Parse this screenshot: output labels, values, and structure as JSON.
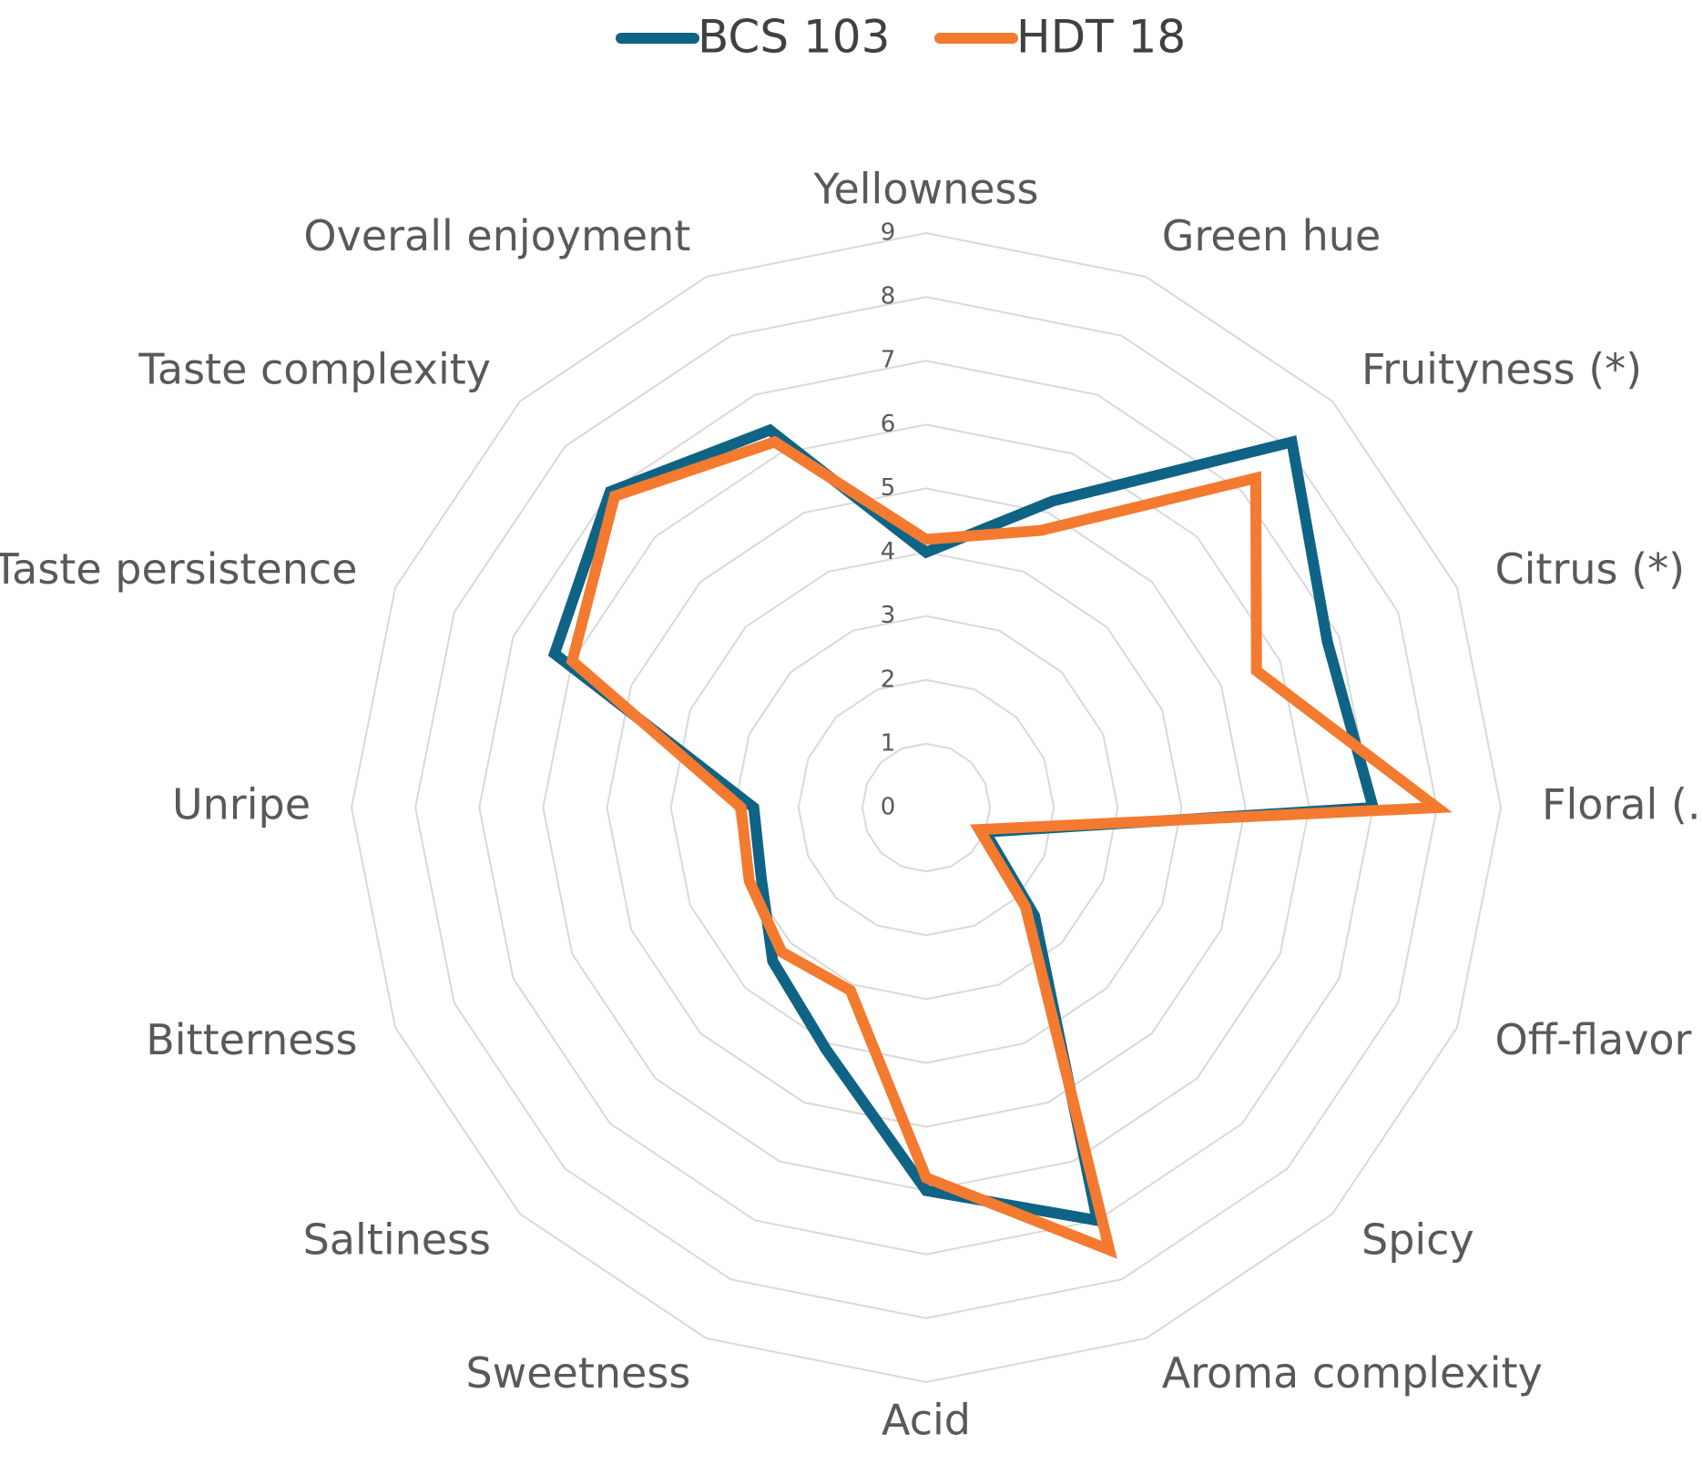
{
  "chart_data": {
    "type": "radar",
    "categories": [
      "Yellowness",
      "Green hue",
      "Fruityness (*)",
      "Citrus (*)",
      "Floral (.)",
      "Off-flavor",
      "Spicy",
      "Aroma complexity",
      "Acid",
      "Sweetness",
      "Saltiness",
      "Bitterness",
      "Unripe",
      "Taste persistence",
      "Taste complexity",
      "Overall enjoyment"
    ],
    "series": [
      {
        "name": "BCS 103",
        "color": "#0f6385",
        "values": [
          4.0,
          5.2,
          8.1,
          6.8,
          7.0,
          1.0,
          2.4,
          7.0,
          6.0,
          4.1,
          3.4,
          2.8,
          2.7,
          6.3,
          7.0,
          6.4
        ]
      },
      {
        "name": "HDT 18",
        "color": "#f47a30",
        "values": [
          4.2,
          4.7,
          7.3,
          5.6,
          8.0,
          0.9,
          2.2,
          7.5,
          5.8,
          3.1,
          3.2,
          3.0,
          2.9,
          6.0,
          6.9,
          6.2
        ]
      }
    ],
    "ylim": [
      0,
      9
    ],
    "yticks": [
      0,
      1,
      2,
      3,
      4,
      5,
      6,
      7,
      8,
      9
    ],
    "grid": true,
    "legend": "top"
  }
}
